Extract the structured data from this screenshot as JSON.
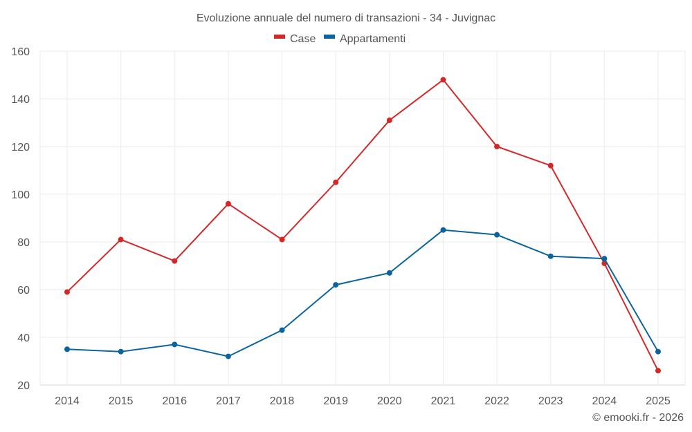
{
  "chart_data": {
    "type": "line",
    "title": "Evoluzione annuale del numero di transazioni - 34 - Juvignac",
    "xlabel": "",
    "ylabel": "",
    "x": [
      "2014",
      "2015",
      "2016",
      "2017",
      "2018",
      "2019",
      "2020",
      "2021",
      "2022",
      "2023",
      "2024",
      "2025"
    ],
    "ylim": [
      20,
      160
    ],
    "yticks": [
      20,
      40,
      60,
      80,
      100,
      120,
      140,
      160
    ],
    "grid": true,
    "legend_position": "top-center",
    "series": [
      {
        "name": "Case",
        "color": "#d62728",
        "values": [
          59,
          81,
          72,
          96,
          81,
          105,
          131,
          148,
          120,
          112,
          71,
          26
        ]
      },
      {
        "name": "Appartamenti",
        "color": "#0a64a0",
        "values": [
          35,
          34,
          37,
          32,
          43,
          62,
          67,
          85,
          83,
          74,
          73,
          34
        ]
      }
    ],
    "credit": "© emooki.fr - 2026"
  }
}
